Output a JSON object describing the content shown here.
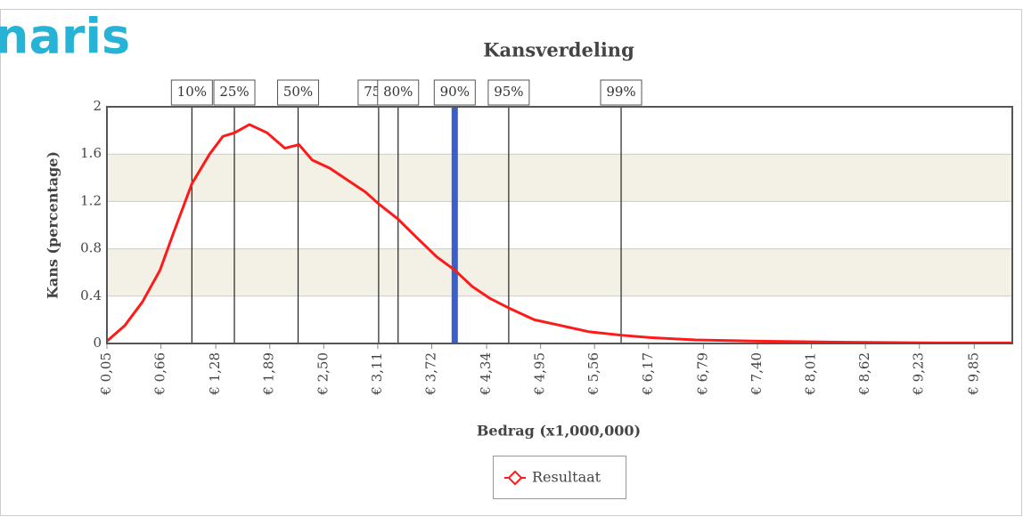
{
  "logo": "naris",
  "chart_data": {
    "type": "line",
    "title": "Kansverdeling",
    "xlabel": "Bedrag (x1,000,000)",
    "ylabel": "Kans (percentage)",
    "xlim": [
      0.05,
      10.28
    ],
    "ylim": [
      0,
      2
    ],
    "yticks": [
      0,
      0.4,
      0.8,
      1.2,
      1.6,
      2
    ],
    "xticks": [
      {
        "value": 0.05,
        "label": "€ 0,05"
      },
      {
        "value": 0.66,
        "label": "€ 0,66"
      },
      {
        "value": 1.28,
        "label": "€ 1,28"
      },
      {
        "value": 1.89,
        "label": "€ 1,89"
      },
      {
        "value": 2.5,
        "label": "€ 2,50"
      },
      {
        "value": 3.11,
        "label": "€ 3,11"
      },
      {
        "value": 3.72,
        "label": "€ 3,72"
      },
      {
        "value": 4.34,
        "label": "€ 4,34"
      },
      {
        "value": 4.95,
        "label": "€ 4,95"
      },
      {
        "value": 5.56,
        "label": "€ 5,56"
      },
      {
        "value": 6.17,
        "label": "€ 6,17"
      },
      {
        "value": 6.79,
        "label": "€ 6,79"
      },
      {
        "value": 7.4,
        "label": "€ 7,40"
      },
      {
        "value": 8.01,
        "label": "€ 8,01"
      },
      {
        "value": 8.62,
        "label": "€ 8,62"
      },
      {
        "value": 9.23,
        "label": "€ 9,23"
      },
      {
        "value": 9.85,
        "label": "€ 9,85"
      }
    ],
    "grid": true,
    "band_color": "#f3f1e6",
    "x": [
      0.05,
      0.25,
      0.45,
      0.65,
      0.81,
      1.01,
      1.21,
      1.36,
      1.49,
      1.66,
      1.86,
      2.06,
      2.22,
      2.37,
      2.57,
      2.77,
      2.97,
      3.12,
      3.34,
      3.57,
      3.78,
      3.98,
      4.18,
      4.38,
      4.59,
      4.88,
      5.19,
      5.49,
      5.86,
      6.19,
      6.7,
      7.4,
      8.41,
      9.42,
      10.28
    ],
    "series": [
      {
        "name": "Resultaat",
        "color": "#ff1a1a",
        "values": [
          0.02,
          0.15,
          0.35,
          0.62,
          0.95,
          1.35,
          1.6,
          1.75,
          1.78,
          1.85,
          1.78,
          1.65,
          1.68,
          1.55,
          1.48,
          1.38,
          1.28,
          1.18,
          1.05,
          0.88,
          0.73,
          0.62,
          0.48,
          0.38,
          0.3,
          0.2,
          0.15,
          0.1,
          0.07,
          0.05,
          0.03,
          0.02,
          0.01,
          0.005,
          0.005
        ]
      }
    ],
    "percentiles": [
      {
        "label": "10%",
        "value": 1.01,
        "color": "#222"
      },
      {
        "label": "25%",
        "value": 1.49,
        "color": "#222"
      },
      {
        "label": "50%",
        "value": 2.21,
        "color": "#222"
      },
      {
        "label": "75%",
        "value": 3.12,
        "color": "#222"
      },
      {
        "label": "80%",
        "value": 3.34,
        "color": "#222"
      },
      {
        "label": "90%",
        "value": 3.98,
        "color": "#3a5fc8"
      },
      {
        "label": "95%",
        "value": 4.59,
        "color": "#222"
      },
      {
        "label": "99%",
        "value": 5.86,
        "color": "#222"
      }
    ]
  }
}
